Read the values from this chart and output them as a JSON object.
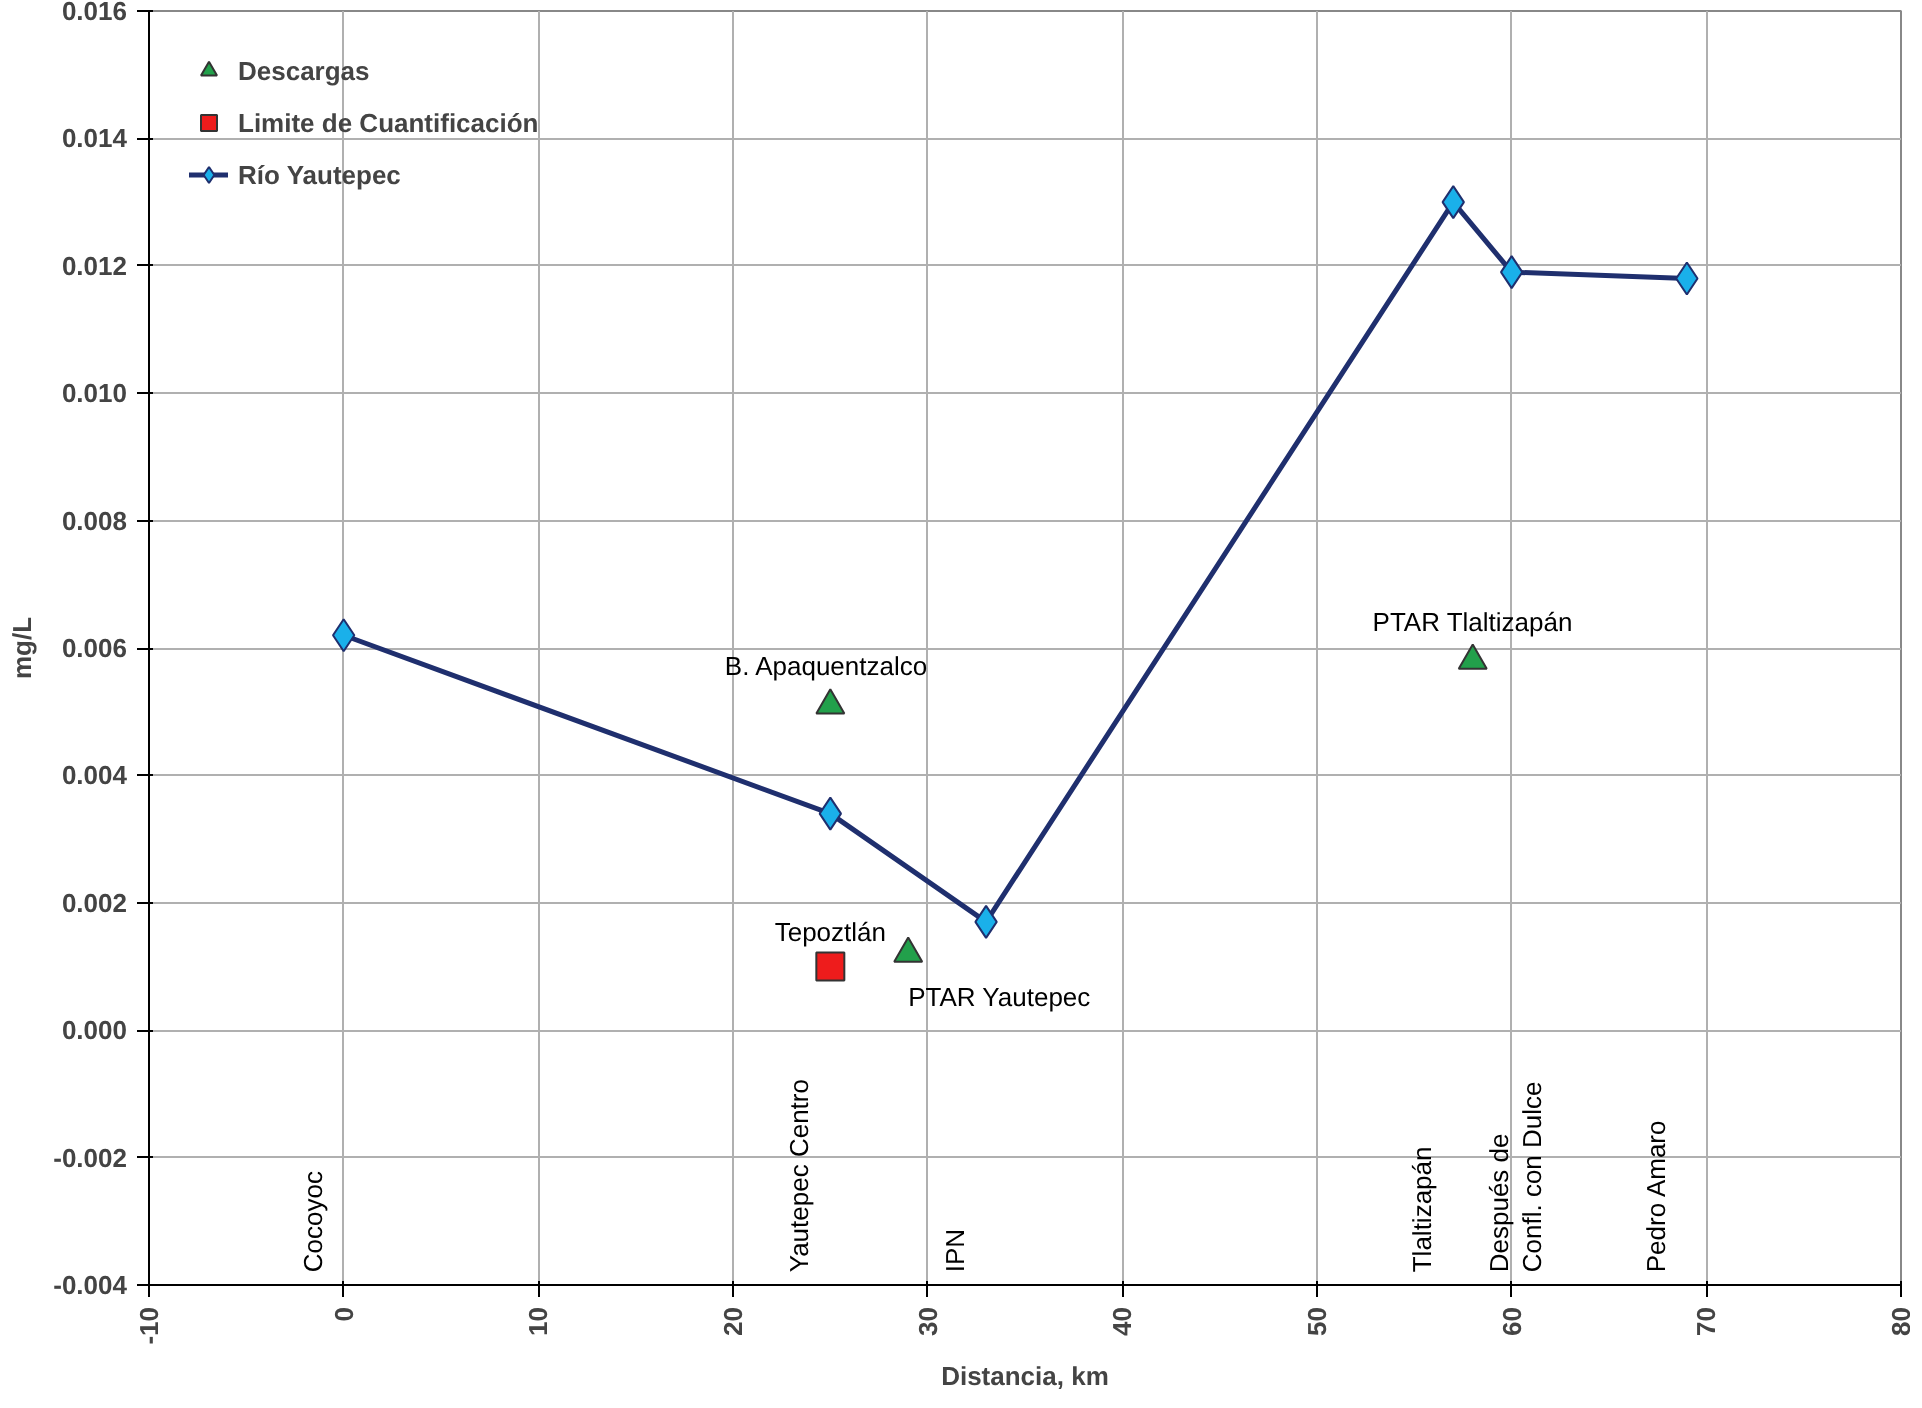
{
  "chart_data": {
    "type": "scatter",
    "xlabel": "Distancia, km",
    "ylabel": "mg/L",
    "xlim": [
      -10,
      80
    ],
    "xticks": [
      -10,
      0,
      10,
      20,
      30,
      40,
      50,
      60,
      70,
      80
    ],
    "ylim": [
      -0.004,
      0.016
    ],
    "yticks": [
      {
        "value": -0.004,
        "label": "-0.004"
      },
      {
        "value": -0.002,
        "label": "-0.002"
      },
      {
        "value": 0,
        "label": "0.000"
      },
      {
        "value": 0.002,
        "label": "0.002"
      },
      {
        "value": 0.004,
        "label": "0.004"
      },
      {
        "value": 0.006,
        "label": "0.006"
      },
      {
        "value": 0.008,
        "label": "0.008"
      },
      {
        "value": 0.01,
        "label": "0.010"
      },
      {
        "value": 0.012,
        "label": "0.012"
      },
      {
        "value": 0.014,
        "label": "0.014"
      },
      {
        "value": 0.016,
        "label": "0.016"
      }
    ],
    "grid": true,
    "legend": "top left",
    "series": [
      {
        "name": "Descargas",
        "marker": "triangle",
        "color": "#22a04b",
        "x": [
          25,
          29,
          58
        ],
        "values": [
          0.0051,
          0.0012,
          0.0058
        ]
      },
      {
        "name": "Limite de Cuantificación",
        "marker": "square",
        "color": "#ee1c1c",
        "x": [
          25
        ],
        "values": [
          0.001
        ]
      },
      {
        "name": "Río Yautepec",
        "type": "line",
        "marker": "diamond",
        "color": "#1f2f6e",
        "x": [
          0,
          25,
          33,
          57,
          60,
          69
        ],
        "values": [
          0.0062,
          0.0034,
          0.0017,
          0.013,
          0.0119,
          0.0118
        ]
      }
    ],
    "annotations": [
      {
        "text": "B.  Apaquentzalco",
        "x": 25,
        "y": 0.0051
      },
      {
        "text": "Tepoztlán",
        "x": 25,
        "y": 0.001
      },
      {
        "text": "PTAR Yautepec",
        "x": 29,
        "y": 0.0012
      },
      {
        "text": "PTAR Tlaltizapán",
        "x": 58,
        "y": 0.0058
      },
      "Cocoyoc",
      "Yautepec Centro",
      "IPN",
      "Tlaltizapán",
      "Después  de\nConfl. con Dulce",
      "Pedro Amaro"
    ]
  }
}
